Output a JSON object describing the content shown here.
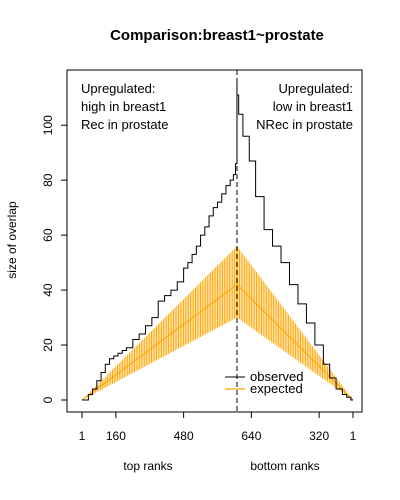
{
  "chart_data": {
    "type": "line",
    "title": "Comparison:breast1~prostate",
    "ylabel": "size of overlap",
    "xlabel_left": "top ranks",
    "xlabel_right": "bottom ranks",
    "ylim": [
      0,
      115
    ],
    "y_ticks": [
      0,
      20,
      40,
      60,
      80,
      100
    ],
    "x_tick_labels": [
      "1",
      "160",
      "480",
      "640",
      "320",
      "1"
    ],
    "x_tick_positions": [
      0,
      160,
      480,
      800,
      1120,
      1280
    ],
    "x_range": [
      0,
      1280
    ],
    "divider_position": 732,
    "annotations": {
      "left": [
        "Upregulated:",
        "high in breast1",
        "Rec in prostate"
      ],
      "right": [
        "Upregulated:",
        "low in breast1",
        "NRec in prostate"
      ]
    },
    "grid": false,
    "legend_placement": "bottom-right",
    "series": [
      {
        "name": "observed",
        "color": "#000000",
        "x": [
          0,
          15,
          30,
          50,
          70,
          90,
          110,
          130,
          150,
          170,
          190,
          210,
          240,
          270,
          300,
          330,
          360,
          390,
          420,
          450,
          480,
          500,
          520,
          540,
          560,
          580,
          600,
          620,
          640,
          660,
          680,
          700,
          715,
          725,
          732,
          740,
          760,
          790,
          820,
          860,
          900,
          940,
          980,
          1020,
          1060,
          1100,
          1140,
          1170,
          1200,
          1230,
          1250,
          1270,
          1280
        ],
        "values": [
          0,
          0,
          2,
          4,
          7,
          10,
          13,
          15,
          16,
          17,
          18,
          19,
          22,
          24,
          27,
          30,
          36,
          38,
          40,
          43,
          48,
          50,
          53,
          56,
          60,
          63,
          67,
          70,
          72,
          75,
          78,
          80,
          82,
          86,
          116,
          111,
          104,
          96,
          87,
          74,
          62,
          56,
          50,
          42,
          35,
          28,
          20,
          13,
          8,
          4,
          2,
          1,
          0
        ]
      },
      {
        "name": "expected",
        "color": "#FFA500",
        "x": [
          0,
          732,
          1280
        ],
        "values": [
          0,
          42,
          0
        ],
        "interval_high": [
          0,
          56,
          0
        ],
        "interval_low": [
          0,
          30,
          0
        ]
      }
    ]
  }
}
